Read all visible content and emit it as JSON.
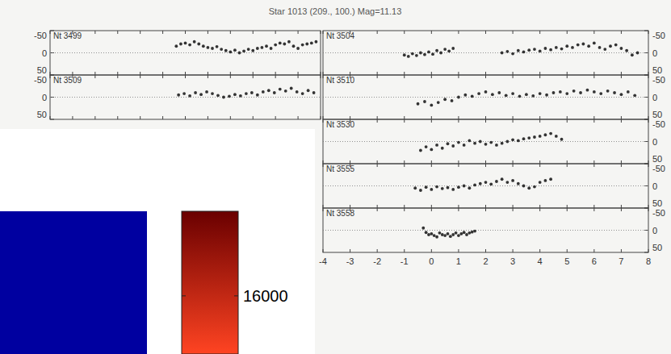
{
  "chart_data": [
    {
      "type": "scatter",
      "title": "Star 1013 (209., 100.) Mag=11.13",
      "xlim": [
        -4,
        8
      ],
      "xticks": [
        -4,
        -3,
        -2,
        -1,
        0,
        1,
        2,
        3,
        4,
        5,
        6,
        7,
        8
      ],
      "ylim": [
        50,
        -50
      ],
      "yticks": [
        -50,
        0,
        50
      ],
      "grid": true,
      "marker": "circle",
      "color": "#333333",
      "series": [
        {
          "name": "Nt 3499",
          "x": [
            1.6,
            1.8,
            2,
            2.2,
            2.4,
            2.6,
            2.8,
            3,
            3.2,
            3.4,
            3.6,
            3.8,
            4,
            4.2,
            4.4,
            4.6,
            4.8,
            5,
            5.2,
            5.4,
            5.6,
            5.8,
            6,
            6.2,
            6.4,
            6.6,
            6.8,
            7,
            7.2,
            7.4,
            7.6,
            7.8
          ],
          "values": [
            -15,
            -20,
            -22,
            -18,
            -25,
            -20,
            -15,
            -12,
            -10,
            -14,
            -8,
            -5,
            -2,
            -6,
            0,
            -4,
            -8,
            -5,
            -10,
            -12,
            -15,
            -10,
            -18,
            -22,
            -20,
            -25,
            -15,
            -10,
            -18,
            -20,
            -22,
            -25
          ]
        },
        {
          "name": "Nt 3504",
          "x": [
            -1,
            -0.85,
            -0.7,
            -0.55,
            -0.4,
            -0.25,
            -0.1,
            0.05,
            0.2,
            0.35,
            0.5,
            0.65,
            0.8,
            2.6,
            2.8,
            3,
            3.2,
            3.4,
            3.6,
            3.8,
            4,
            4.2,
            4.4,
            4.6,
            4.8,
            5,
            5.2,
            5.4,
            5.6,
            5.8,
            6,
            6.2,
            6.4,
            6.6,
            6.8,
            7,
            7.2,
            7.4,
            7.6
          ],
          "values": [
            5,
            8,
            2,
            6,
            0,
            4,
            -2,
            3,
            -5,
            0,
            -8,
            -4,
            -10,
            0,
            -3,
            2,
            -5,
            -2,
            -6,
            -8,
            -4,
            -10,
            -7,
            -12,
            -9,
            -15,
            -12,
            -18,
            -20,
            -15,
            -22,
            -12,
            -8,
            -15,
            -18,
            -10,
            -5,
            5,
            0
          ]
        },
        {
          "name": "Nt 3509",
          "x": [
            1.7,
            1.95,
            2.2,
            2.45,
            2.7,
            2.95,
            3.2,
            3.45,
            3.7,
            3.95,
            4.2,
            4.45,
            4.7,
            4.95,
            5.2,
            5.45,
            5.7,
            5.95,
            6.2,
            6.45,
            6.7,
            6.95,
            7.2,
            7.45,
            7.7
          ],
          "values": [
            -5,
            -8,
            -3,
            -10,
            -6,
            -12,
            -8,
            -4,
            0,
            -2,
            -6,
            -3,
            -8,
            -10,
            -5,
            -12,
            -15,
            -10,
            -18,
            -14,
            -20,
            -12,
            -8,
            -15,
            -10
          ]
        },
        {
          "name": "Nt 3510",
          "x": [
            -0.5,
            -0.25,
            0,
            0.25,
            0.5,
            0.75,
            1,
            1.25,
            1.5,
            1.75,
            2,
            2.25,
            2.5,
            2.75,
            3,
            3.25,
            3.5,
            3.75,
            4,
            4.25,
            4.5,
            4.75,
            5,
            5.25,
            5.5,
            5.75,
            6,
            6.25,
            6.5,
            6.75,
            7,
            7.25,
            7.5
          ],
          "values": [
            15,
            10,
            18,
            12,
            5,
            8,
            0,
            -5,
            -2,
            -8,
            -12,
            -6,
            -10,
            -4,
            -8,
            -2,
            -6,
            -3,
            -8,
            -5,
            -10,
            -12,
            -8,
            -14,
            -10,
            -16,
            -12,
            -8,
            -14,
            -10,
            -6,
            -12,
            -4
          ]
        },
        {
          "name": "Nt 3530",
          "x": [
            -0.4,
            -0.2,
            0,
            0.2,
            0.4,
            0.6,
            0.8,
            1,
            1.2,
            1.4,
            1.6,
            1.8,
            2,
            2.2,
            2.4,
            2.6,
            2.8,
            3,
            3.2,
            3.4,
            3.6,
            3.8,
            4,
            4.2,
            4.4,
            4.6,
            4.8
          ],
          "values": [
            20,
            12,
            18,
            8,
            15,
            5,
            10,
            2,
            8,
            -2,
            4,
            0,
            6,
            2,
            8,
            4,
            0,
            -4,
            -2,
            -6,
            -8,
            -10,
            -12,
            -15,
            -18,
            -12,
            -5
          ]
        },
        {
          "name": "Nt 3555",
          "x": [
            -0.6,
            -0.4,
            -0.2,
            0,
            0.2,
            0.4,
            0.6,
            0.8,
            1,
            1.2,
            1.4,
            1.6,
            1.8,
            2,
            2.2,
            2.4,
            2.6,
            2.8,
            3,
            3.2,
            3.4,
            3.6,
            3.8,
            4,
            4.2,
            4.4
          ],
          "values": [
            5,
            10,
            3,
            8,
            2,
            6,
            4,
            8,
            3,
            0,
            5,
            -2,
            -5,
            -8,
            -4,
            -10,
            -15,
            -8,
            -12,
            -5,
            0,
            5,
            2,
            -8,
            -12,
            -15
          ]
        },
        {
          "name": "Nt 3558",
          "x": [
            -0.3,
            -0.2,
            -0.1,
            0,
            0.1,
            0.2,
            0.3,
            0.4,
            0.5,
            0.6,
            0.7,
            0.8,
            0.9,
            1,
            1.1,
            1.2,
            1.3,
            1.4,
            1.5,
            1.6
          ],
          "values": [
            -5,
            5,
            10,
            8,
            12,
            15,
            6,
            10,
            12,
            8,
            14,
            10,
            6,
            12,
            8,
            5,
            10,
            6,
            4,
            2
          ]
        }
      ]
    },
    {
      "type": "heatmap",
      "color": "#0000a0",
      "colorbar": {
        "range": [
          13250,
          20000
        ],
        "ticks": [
          16000
        ],
        "colors": [
          "#ff4422",
          "#6a0000"
        ]
      }
    }
  ]
}
